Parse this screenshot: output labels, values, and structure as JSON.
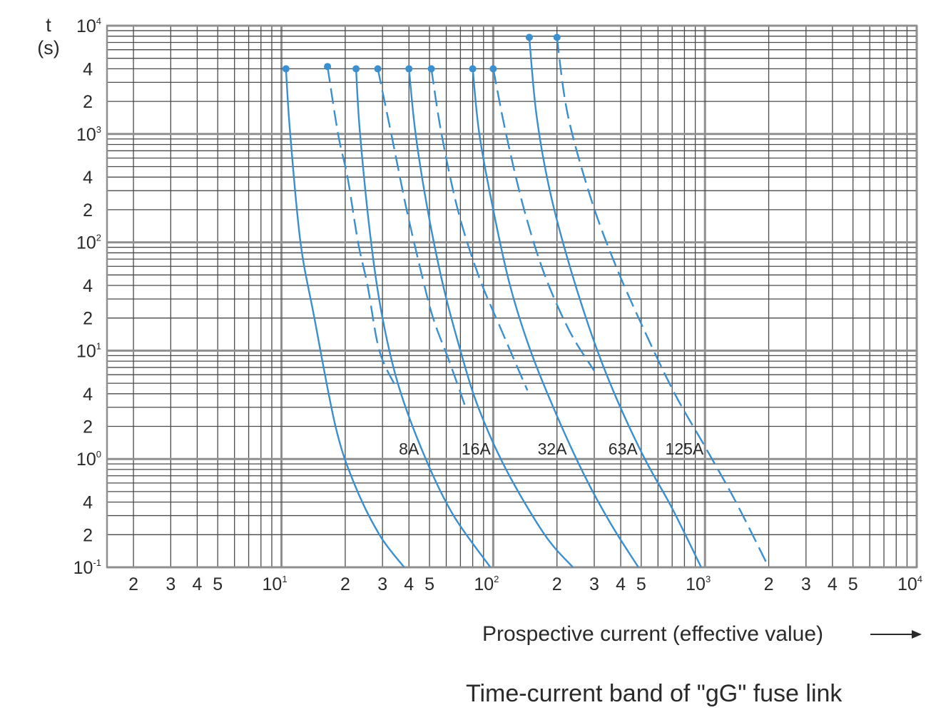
{
  "chart_data": {
    "type": "line",
    "title": "Time-current band of \"gG\" fuse link",
    "xlabel": "Prospective current (effective value)",
    "ylabel_lines": [
      "t",
      "(s)"
    ],
    "xscale": "log",
    "yscale": "log",
    "xlim": [
      1.5,
      10000
    ],
    "ylim": [
      0.1,
      10000
    ],
    "grid": true,
    "legend": "labels on curves",
    "curve_color": "#3a8fd0",
    "x_ticks": [
      {
        "value": 2,
        "base": "2",
        "exp": ""
      },
      {
        "value": 3,
        "base": "3",
        "exp": ""
      },
      {
        "value": 4,
        "base": "4",
        "exp": ""
      },
      {
        "value": 5,
        "base": "5",
        "exp": ""
      },
      {
        "value": 10,
        "base": "10",
        "exp": "1"
      },
      {
        "value": 20,
        "base": "2",
        "exp": ""
      },
      {
        "value": 30,
        "base": "3",
        "exp": ""
      },
      {
        "value": 40,
        "base": "4",
        "exp": ""
      },
      {
        "value": 50,
        "base": "5",
        "exp": ""
      },
      {
        "value": 100,
        "base": "10",
        "exp": "2"
      },
      {
        "value": 200,
        "base": "2",
        "exp": ""
      },
      {
        "value": 300,
        "base": "3",
        "exp": ""
      },
      {
        "value": 400,
        "base": "4",
        "exp": ""
      },
      {
        "value": 500,
        "base": "5",
        "exp": ""
      },
      {
        "value": 1000,
        "base": "10",
        "exp": "3"
      },
      {
        "value": 2000,
        "base": "2",
        "exp": ""
      },
      {
        "value": 3000,
        "base": "3",
        "exp": ""
      },
      {
        "value": 4000,
        "base": "4",
        "exp": ""
      },
      {
        "value": 5000,
        "base": "5",
        "exp": ""
      },
      {
        "value": 10000,
        "base": "10",
        "exp": "4"
      }
    ],
    "y_ticks": [
      {
        "value": 10000,
        "base": "10",
        "exp": "4"
      },
      {
        "value": 4000,
        "base": "4",
        "exp": ""
      },
      {
        "value": 2000,
        "base": "2",
        "exp": ""
      },
      {
        "value": 1000,
        "base": "10",
        "exp": "3"
      },
      {
        "value": 400,
        "base": "4",
        "exp": ""
      },
      {
        "value": 200,
        "base": "2",
        "exp": ""
      },
      {
        "value": 100,
        "base": "10",
        "exp": "2"
      },
      {
        "value": 40,
        "base": "4",
        "exp": ""
      },
      {
        "value": 20,
        "base": "2",
        "exp": ""
      },
      {
        "value": 10,
        "base": "10",
        "exp": "1"
      },
      {
        "value": 4,
        "base": "4",
        "exp": ""
      },
      {
        "value": 2,
        "base": "2",
        "exp": ""
      },
      {
        "value": 1,
        "base": "10",
        "exp": "0"
      },
      {
        "value": 0.4,
        "base": "4",
        "exp": ""
      },
      {
        "value": 0.2,
        "base": "2",
        "exp": ""
      },
      {
        "value": 0.1,
        "base": "10",
        "exp": "-1"
      }
    ],
    "series": [
      {
        "name": "8A",
        "label_at": [
          40,
          1.1
        ],
        "bands": [
          {
            "style": "solid",
            "points": [
              [
                10.5,
                4000
              ],
              [
                11,
                1000
              ],
              [
                12.3,
                100
              ],
              [
                14.3,
                20
              ],
              [
                18,
                2
              ],
              [
                22,
                0.6
              ],
              [
                29,
                0.2
              ],
              [
                38,
                0.1
              ]
            ]
          },
          {
            "style": "dashed",
            "points": [
              [
                16.5,
                4200
              ],
              [
                18.5,
                1000
              ],
              [
                20.5,
                400
              ],
              [
                23,
                100
              ],
              [
                25.5,
                40
              ],
              [
                29,
                10
              ],
              [
                35,
                4.5
              ]
            ]
          }
        ]
      },
      {
        "name": "16A",
        "label_at": [
          83,
          1.1
        ],
        "bands": [
          {
            "style": "solid",
            "points": [
              [
                22.5,
                4000
              ],
              [
                23.5,
                1000
              ],
              [
                26.5,
                100
              ],
              [
                30,
                20
              ],
              [
                36,
                4.5
              ],
              [
                48,
                1
              ],
              [
                65,
                0.3
              ],
              [
                97,
                0.1
              ]
            ]
          },
          {
            "style": "dashed",
            "points": [
              [
                28.5,
                4000
              ],
              [
                33,
                1000
              ],
              [
                39,
                200
              ],
              [
                45,
                60
              ],
              [
                52,
                20
              ],
              [
                62,
                8
              ],
              [
                74,
                3
              ]
            ]
          }
        ]
      },
      {
        "name": "32A",
        "label_at": [
          190,
          1.1
        ],
        "bands": [
          {
            "style": "solid",
            "points": [
              [
                40,
                4000
              ],
              [
                43,
                1000
              ],
              [
                49,
                200
              ],
              [
                58,
                40
              ],
              [
                70,
                10
              ],
              [
                85,
                3
              ],
              [
                115,
                0.8
              ],
              [
                175,
                0.2
              ],
              [
                238,
                0.1
              ]
            ]
          },
          {
            "style": "dashed",
            "points": [
              [
                51,
                4000
              ],
              [
                57,
                1000
              ],
              [
                68,
                200
              ],
              [
                85,
                50
              ],
              [
                110,
                15
              ],
              [
                145,
                4.3
              ]
            ]
          }
        ]
      },
      {
        "name": "63A",
        "label_at": [
          410,
          1.1
        ],
        "bands": [
          {
            "style": "solid",
            "points": [
              [
                80,
                4000
              ],
              [
                86,
                1000
              ],
              [
                100,
                200
              ],
              [
                120,
                40
              ],
              [
                150,
                10
              ],
              [
                200,
                2.5
              ],
              [
                270,
                0.7
              ],
              [
                360,
                0.25
              ],
              [
                485,
                0.1
              ]
            ]
          },
          {
            "style": "dashed",
            "points": [
              [
                100,
                4000
              ],
              [
                115,
                1000
              ],
              [
                140,
                200
              ],
              [
                175,
                50
              ],
              [
                230,
                15
              ],
              [
                300,
                6.5
              ]
            ]
          }
        ]
      },
      {
        "name": "125A",
        "label_at": [
          800,
          1.1
        ],
        "bands": [
          {
            "style": "solid",
            "points": [
              [
                148,
                7800
              ],
              [
                160,
                1500
              ],
              [
                185,
                300
              ],
              [
                230,
                60
              ],
              [
                300,
                12
              ],
              [
                385,
                3.5
              ],
              [
                520,
                1
              ],
              [
                700,
                0.35
              ],
              [
                960,
                0.1
              ]
            ]
          },
          {
            "style": "dashed",
            "points": [
              [
                200,
                7800
              ],
              [
                225,
                1500
              ],
              [
                290,
                250
              ],
              [
                380,
                60
              ],
              [
                520,
                15
              ],
              [
                720,
                4
              ],
              [
                1000,
                1.3
              ],
              [
                1400,
                0.4
              ],
              [
                2000,
                0.1
              ]
            ]
          }
        ]
      }
    ]
  }
}
